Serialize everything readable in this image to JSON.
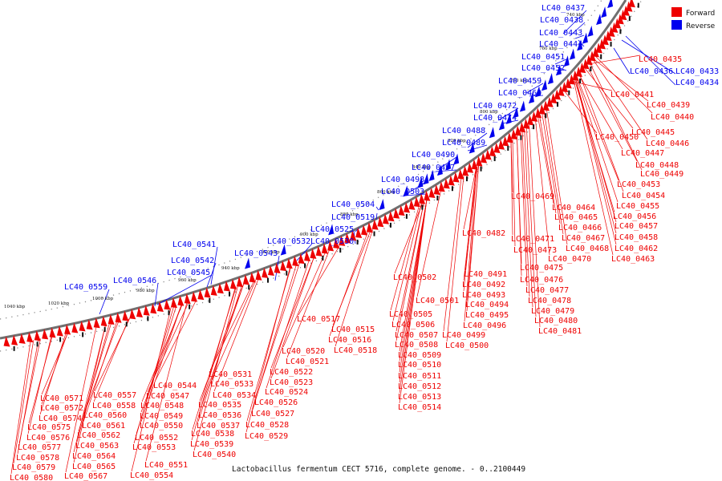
{
  "caption": "Lactobacillus fermentum CECT 5716, complete genome. - 0..2100449",
  "legend": [
    {
      "label": "Forward",
      "color": "#ee0000"
    },
    {
      "label": "Reverse",
      "color": "#0000ee"
    }
  ],
  "colors": {
    "forward": "#ee0000",
    "reverse": "#0000ee",
    "backbone": "#707070"
  },
  "ticks": [
    "740 kbp",
    "760 kbp",
    "780 kbp",
    "800 kbp",
    "820 kbp",
    "840 kbp",
    "860 kbp",
    "880 kbp",
    "900 kbp",
    "920 kbp",
    "940 kbp",
    "960 kbp",
    "980 kbp",
    "1000 kbp",
    "1020 kbp",
    "1040 kbp"
  ],
  "reverse_labels": [
    "LC40_0437",
    "LC40_0438",
    "LC40_0443",
    "LC40_0444",
    "LC40_0451",
    "LC40_0452",
    "LC40_0459",
    "LC40_0460",
    "LC40_0472",
    "LC40_0474",
    "LC40_0488",
    "LC40_0489",
    "LC40_0490",
    "LC40_0497",
    "LC40_0498",
    "LC40_0503",
    "LC40_0504",
    "LC40_0519",
    "LC40_0525",
    "LC40_0530",
    "LC40_0532",
    "LC40_0543",
    "LC40_0541",
    "LC40_0542",
    "LC40_0545",
    "LC40_0546",
    "LC40_0559",
    "LC40_0436",
    "LC40_0433",
    "LC40_0434"
  ],
  "forward_labels": [
    "LC40_0435",
    "LC40_0441",
    "LC40_0439",
    "LC40_0440",
    "LC40_0445",
    "LC40_0450",
    "LC40_0446",
    "LC40_0447",
    "LC40_0448",
    "LC40_0449",
    "LC40_0453",
    "LC40_0454",
    "LC40_0469",
    "LC40_0455",
    "LC40_0464",
    "LC40_0456",
    "LC40_0465",
    "LC40_0466",
    "LC40_0457",
    "LC40_0482",
    "LC40_0471",
    "LC40_0467",
    "LC40_0458",
    "LC40_0468",
    "LC40_0462",
    "LC40_0473",
    "LC40_0470",
    "LC40_0463",
    "LC40_0475",
    "LC40_0491",
    "LC40_0476",
    "LC40_0492",
    "LC40_0502",
    "LC40_0477",
    "LC40_0493",
    "LC40_0478",
    "LC40_0501",
    "LC40_0494",
    "LC40_0479",
    "LC40_0505",
    "LC40_0495",
    "LC40_0480",
    "LC40_0517",
    "LC40_0506",
    "LC40_0496",
    "LC40_0481",
    "LC40_0515",
    "LC40_0507",
    "LC40_0499",
    "LC40_0516",
    "LC40_0508",
    "LC40_0500",
    "LC40_0518",
    "LC40_0509",
    "LC40_0520",
    "LC40_0510",
    "LC40_0521",
    "LC40_0511",
    "LC40_0522",
    "LC40_0512",
    "LC40_0531",
    "LC40_0523",
    "LC40_0513",
    "LC40_0544",
    "LC40_0533",
    "LC40_0524",
    "LC40_0514",
    "LC40_0571",
    "LC40_0557",
    "LC40_0547",
    "LC40_0534",
    "LC40_0526",
    "LC40_0572",
    "LC40_0558",
    "LC40_0548",
    "LC40_0535",
    "LC40_0574",
    "LC40_0560",
    "LC40_0549",
    "LC40_0536",
    "LC40_0527",
    "LC40_0575",
    "LC40_0561",
    "LC40_0550",
    "LC40_0537",
    "LC40_0528",
    "LC40_0576",
    "LC40_0562",
    "LC40_0538",
    "LC40_0529",
    "LC40_0552",
    "LC40_0577",
    "LC40_0563",
    "LC40_0553",
    "LC40_0539",
    "LC40_0578",
    "LC40_0564",
    "LC40_0540",
    "LC40_0579",
    "LC40_0565",
    "LC40_0551",
    "LC40_0580",
    "LC40_0567",
    "LC40_0554"
  ]
}
